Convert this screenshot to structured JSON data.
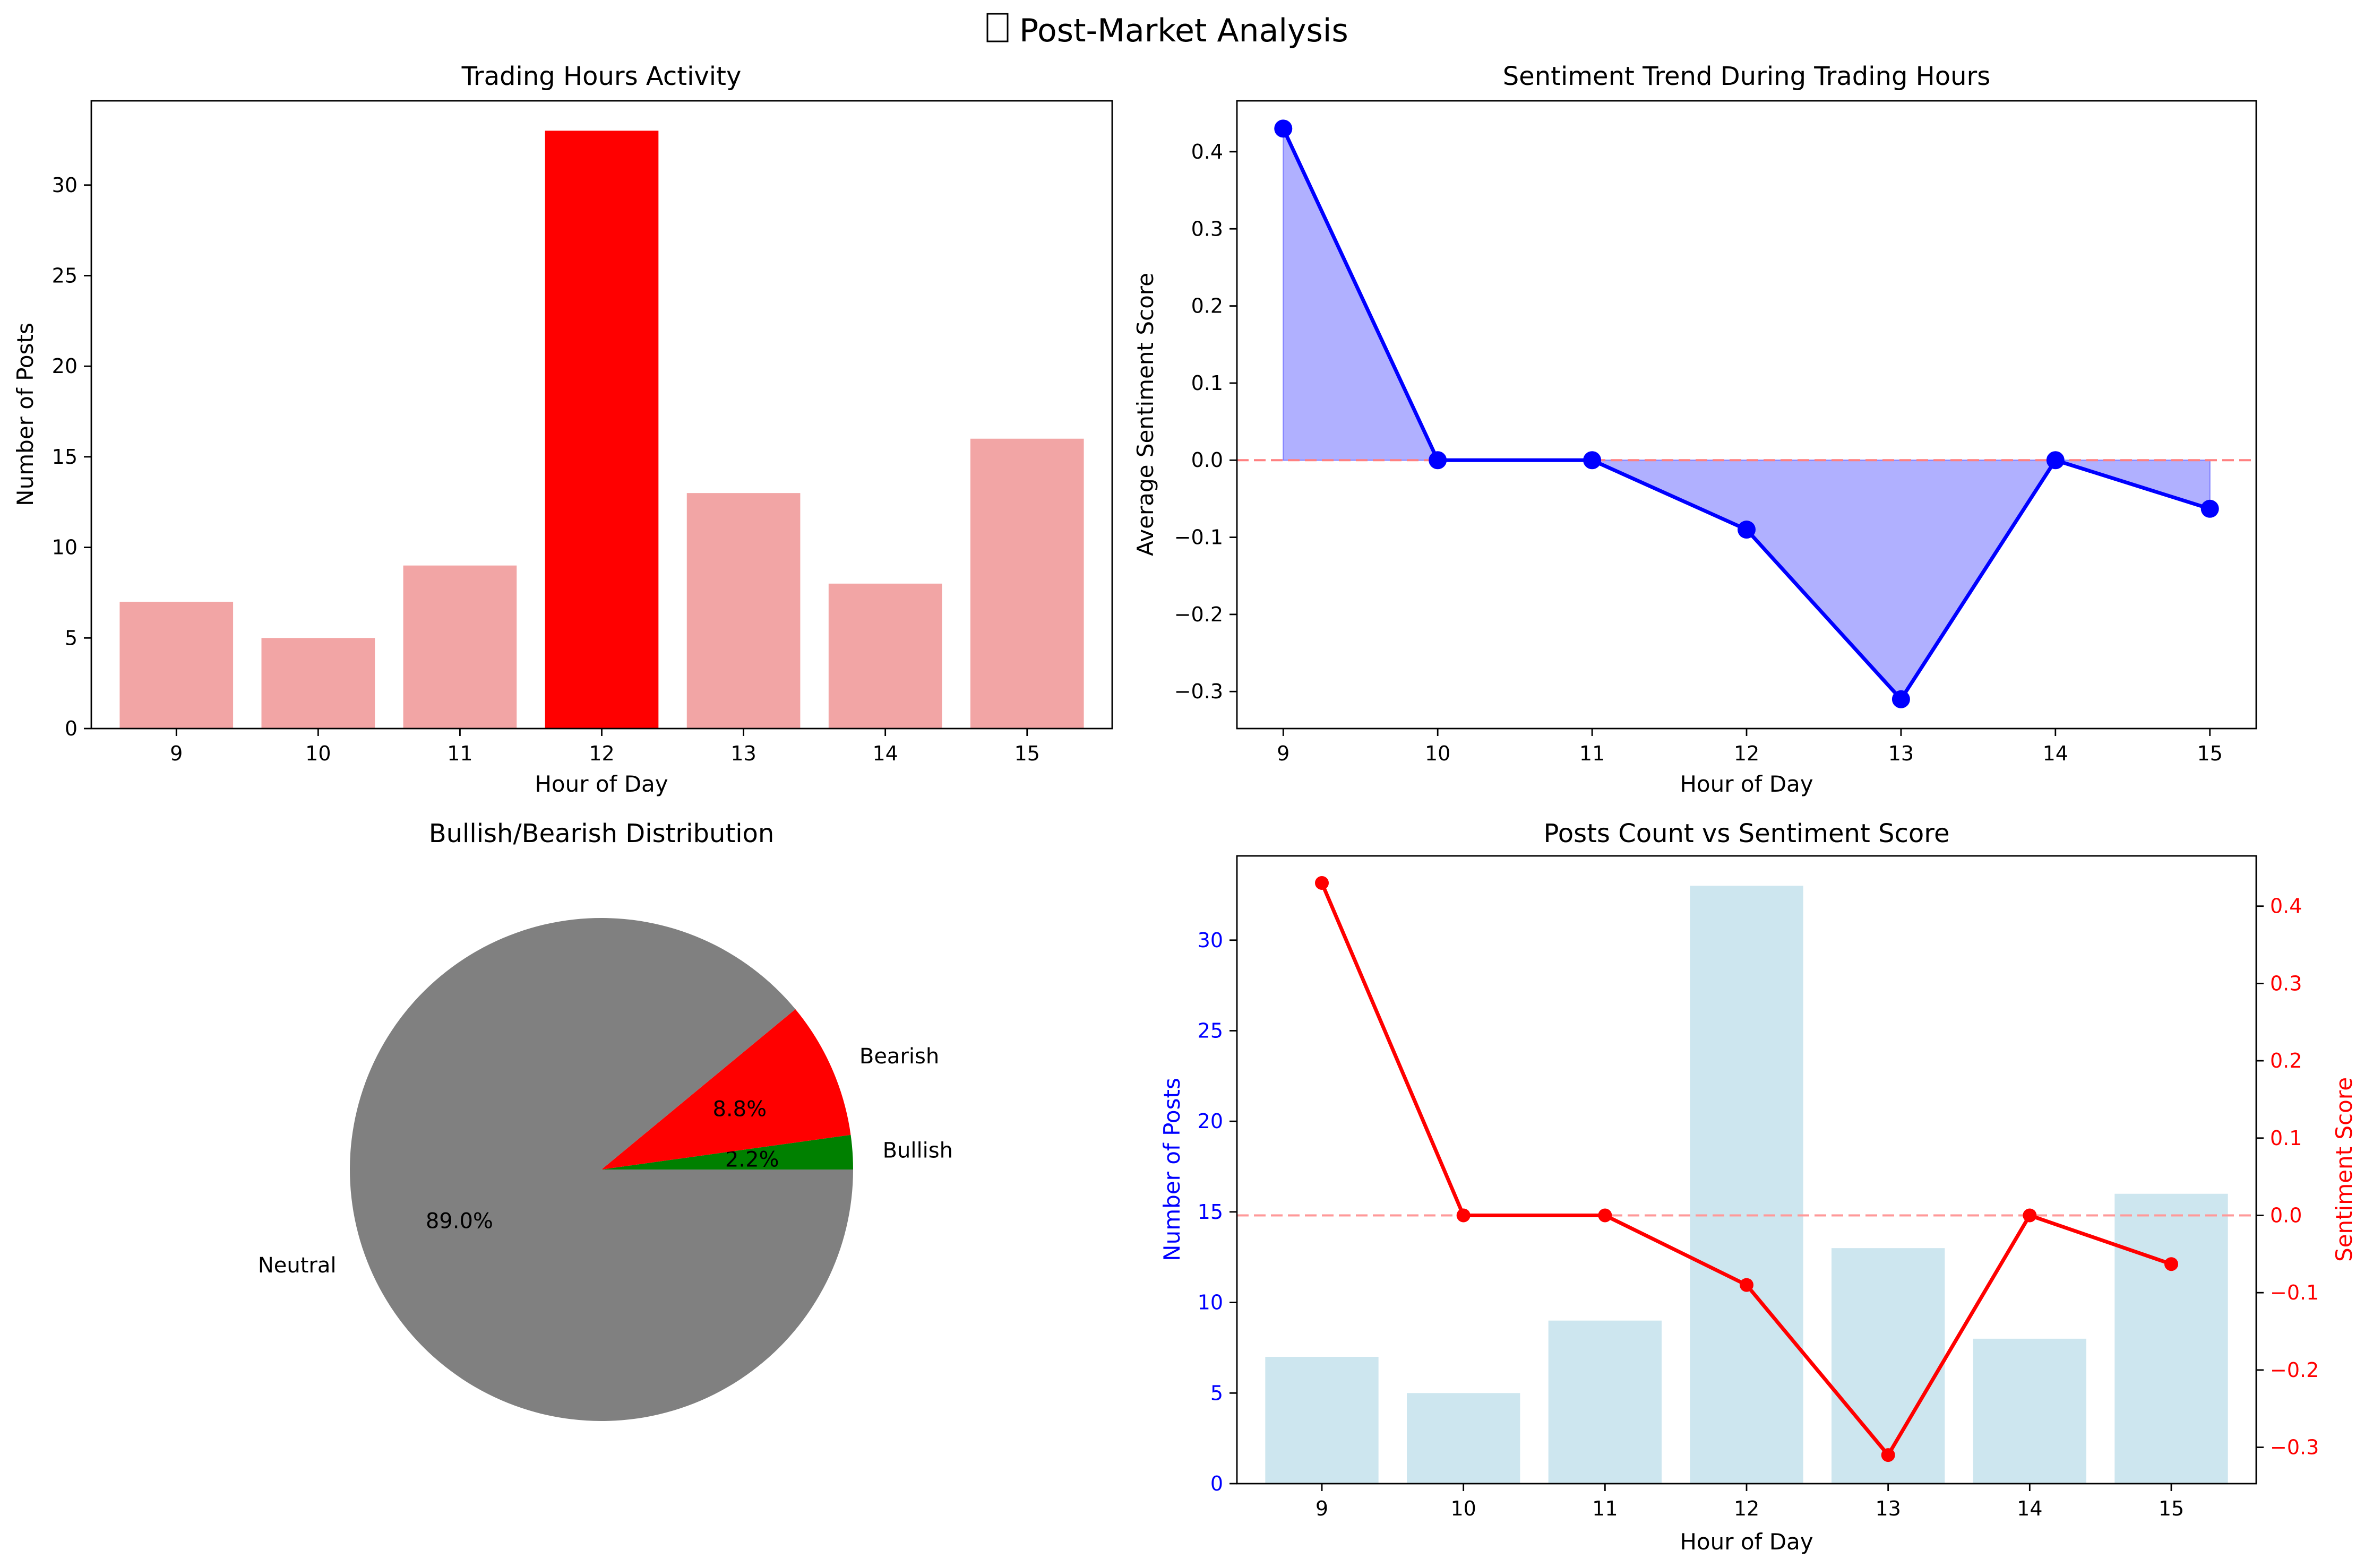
{
  "figure": {
    "title_icon": "chart-icon",
    "title": "Post-Market Analysis"
  },
  "hours": [
    9,
    10,
    11,
    12,
    13,
    14,
    15
  ],
  "colors": {
    "bar_highlight": "#ff0000",
    "bar_normal": "#f2a5a5",
    "line_blue": "#0000ff",
    "fill_blue": "#b0b0ff",
    "baseline_red": "#ff8080",
    "bar_lightblue": "#cde6ef",
    "line_red": "#ff0000",
    "neutral_gray": "#808080",
    "bearish_red": "#ff0000",
    "bullish_green": "#008000"
  },
  "chart_data": [
    {
      "id": "activity",
      "type": "bar",
      "title": "Trading Hours Activity",
      "xlabel": "Hour of Day",
      "ylabel": "Number of Posts",
      "categories": [
        "9",
        "10",
        "11",
        "12",
        "13",
        "14",
        "15"
      ],
      "values": [
        7,
        5,
        9,
        33,
        13,
        8,
        16
      ],
      "highlight_index": 3,
      "ylim": [
        0,
        34.65
      ],
      "yticks": [
        0,
        5,
        10,
        15,
        20,
        25,
        30
      ]
    },
    {
      "id": "sentiment",
      "type": "area",
      "title": "Sentiment Trend During Trading Hours",
      "xlabel": "Hour of Day",
      "ylabel": "Average Sentiment Score",
      "x": [
        9,
        10,
        11,
        12,
        13,
        14,
        15
      ],
      "values": [
        0.43,
        0.0,
        0.0,
        -0.09,
        -0.31,
        0.0,
        -0.063
      ],
      "baseline": 0,
      "ylim": [
        -0.348,
        0.466
      ],
      "yticks": [
        -0.3,
        -0.2,
        -0.1,
        0.0,
        0.1,
        0.2,
        0.3,
        0.4
      ]
    },
    {
      "id": "distribution",
      "type": "pie",
      "title": "Bullish/Bearish Distribution",
      "labels": [
        "Neutral",
        "Bearish",
        "Bullish"
      ],
      "percents": [
        "89.0%",
        "8.8%",
        "2.2%"
      ],
      "values": [
        89.0,
        8.8,
        2.2
      ]
    },
    {
      "id": "combo",
      "type": "bar",
      "title": "Posts Count vs Sentiment Score",
      "xlabel": "Hour of Day",
      "ylabel": "Number of Posts",
      "y2label": "Sentiment Score",
      "categories": [
        "9",
        "10",
        "11",
        "12",
        "13",
        "14",
        "15"
      ],
      "values": [
        7,
        5,
        9,
        33,
        13,
        8,
        16
      ],
      "ylim": [
        0,
        34.65
      ],
      "yticks": [
        0,
        5,
        10,
        15,
        20,
        25,
        30
      ],
      "series2": [
        0.43,
        0.0,
        0.0,
        -0.09,
        -0.31,
        0.0,
        -0.063
      ],
      "y2lim": [
        -0.347,
        0.465
      ],
      "y2ticks": [
        -0.3,
        -0.2,
        -0.1,
        0.0,
        0.1,
        0.2,
        0.3,
        0.4
      ],
      "baseline2": 0
    }
  ]
}
